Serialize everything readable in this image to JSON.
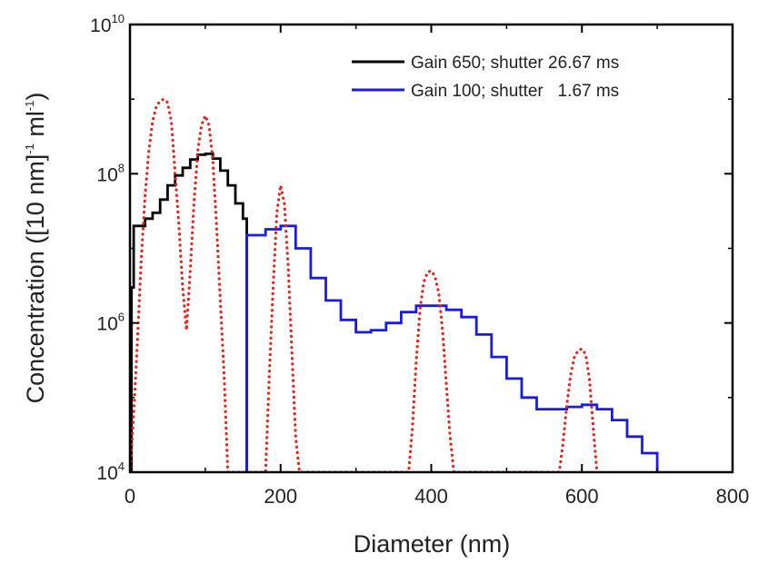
{
  "chart_data": {
    "type": "line",
    "xlabel": "Diameter (nm)",
    "ylabel": {
      "prefix": "Concentration ([10 nm]",
      "sup1": "-1",
      "middle": " ml",
      "sup2": "-1",
      "suffix": ")"
    },
    "xlim": [
      0,
      800
    ],
    "ylim": [
      10000,
      10000000000
    ],
    "yscale": "log",
    "x_ticks": [
      {
        "value": 0,
        "label": "0"
      },
      {
        "value": 200,
        "label": "200"
      },
      {
        "value": 400,
        "label": "400"
      },
      {
        "value": 600,
        "label": "600"
      },
      {
        "value": 800,
        "label": "800"
      }
    ],
    "y_ticks": [
      {
        "value": 10000,
        "base": "10",
        "exp": "4"
      },
      {
        "value": 1000000,
        "base": "10",
        "exp": "6"
      },
      {
        "value": 100000000,
        "base": "10",
        "exp": "8"
      },
      {
        "value": 10000000000,
        "base": "10",
        "exp": "10"
      }
    ],
    "grid": false,
    "legend_position": "top-right",
    "series": [
      {
        "name": "Gain 650; shutter 26.67 ms",
        "style": "step",
        "color": "#000000",
        "x": [
          2,
          5,
          10,
          20,
          30,
          40,
          50,
          60,
          70,
          80,
          90,
          100,
          110,
          120,
          130,
          140,
          150,
          155
        ],
        "y": [
          3000000,
          20000000,
          20000000,
          25000000,
          30000000,
          45000000,
          70000000,
          95000000,
          120000000,
          155000000,
          180000000,
          185000000,
          160000000,
          110000000,
          70000000,
          40000000,
          25000000,
          25000000
        ]
      },
      {
        "name": "Gain 100; shutter   1.67 ms",
        "style": "step",
        "color": "#1a1ae6",
        "x": [
          155,
          180,
          200,
          220,
          240,
          260,
          280,
          300,
          320,
          340,
          360,
          380,
          400,
          420,
          440,
          460,
          480,
          500,
          520,
          540,
          560,
          580,
          600,
          620,
          640,
          660,
          680,
          700
        ],
        "y": [
          15000000,
          18000000,
          20000000,
          10000000,
          4000000,
          2000000,
          1100000,
          750000,
          800000,
          1000000,
          1400000,
          1700000,
          1700000,
          1500000,
          1200000,
          700000,
          350000,
          180000,
          100000,
          70000,
          70000,
          75000,
          80000,
          70000,
          50000,
          30000,
          18000,
          10000
        ]
      },
      {
        "name": "",
        "style": "dotted",
        "color": "#e8201a",
        "x": [
          0,
          5,
          10,
          15,
          20,
          25,
          30,
          35,
          40,
          45,
          50,
          55,
          60,
          65,
          70,
          75,
          80,
          85,
          90,
          95,
          100,
          105,
          110,
          115,
          120,
          125,
          130,
          180,
          185,
          190,
          195,
          200,
          205,
          210,
          215,
          220,
          225,
          370,
          375,
          380,
          385,
          390,
          395,
          400,
          405,
          410,
          415,
          420,
          425,
          430,
          570,
          575,
          580,
          585,
          590,
          595,
          600,
          605,
          610,
          615,
          620
        ],
        "y": [
          10000,
          60000,
          600000,
          7000000,
          50000000,
          200000000,
          500000000,
          800000000,
          950000000,
          1000000000,
          900000000,
          500000000,
          100000000,
          20000000,
          3000000,
          800000,
          5000000,
          40000000,
          200000000,
          450000000,
          600000000,
          450000000,
          150000000,
          20000000,
          2000000,
          200000,
          10000,
          10000,
          200000,
          3000000,
          30000000,
          70000000,
          40000000,
          6000000,
          400000,
          30000,
          10000,
          10000,
          40000,
          300000,
          1500000,
          3500000,
          4800000,
          5000000,
          4200000,
          2500000,
          800000,
          150000,
          30000,
          10000,
          10000,
          25000,
          80000,
          200000,
          350000,
          430000,
          450000,
          380000,
          180000,
          40000,
          10000
        ]
      }
    ]
  }
}
